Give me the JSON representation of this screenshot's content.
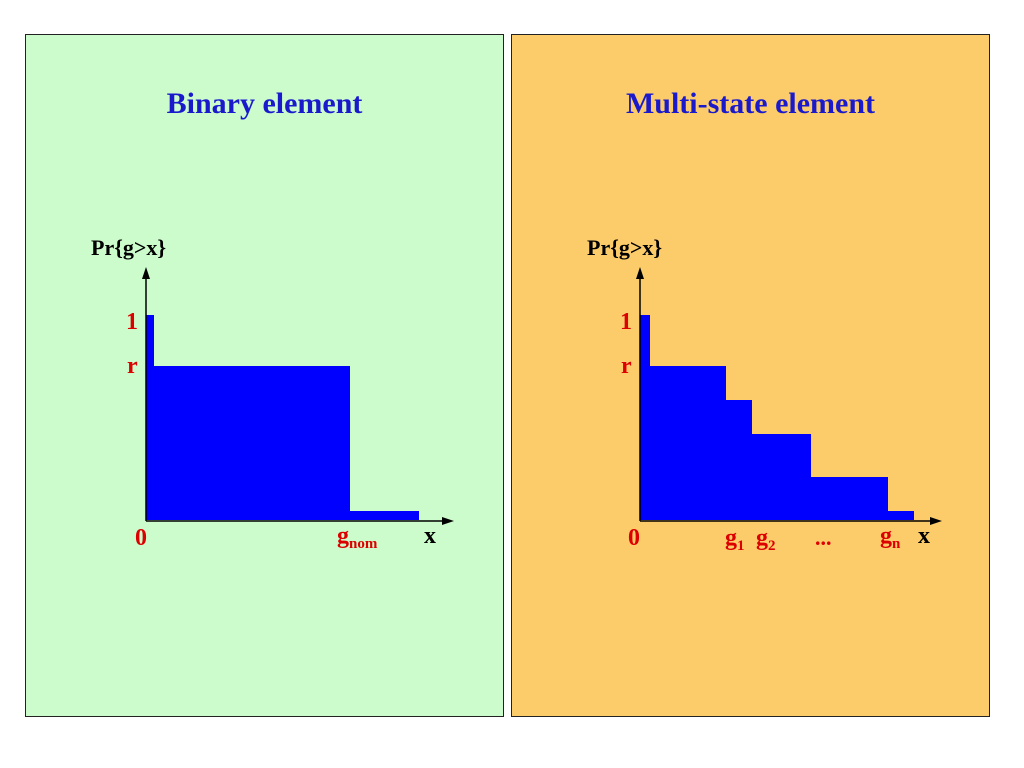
{
  "colors": {
    "left_panel_bg": "#ccfccc",
    "right_panel_bg": "#fccc6a",
    "title": "#1a1acc",
    "bar_fill": "#0000ff",
    "tick_label": "#dd0000",
    "axis": "#000000"
  },
  "left_panel": {
    "title": "Binary element",
    "ylabel": "Pr{g>x}",
    "xlabel": "x",
    "y_ticks": {
      "one": "1",
      "r": "r"
    },
    "x_ticks": {
      "zero": "0",
      "g_nom": {
        "base": "g",
        "sub": "nom"
      }
    }
  },
  "right_panel": {
    "title": "Multi-state element",
    "ylabel": "Pr{g>x}",
    "xlabel": "x",
    "y_ticks": {
      "one": "1",
      "r": "r"
    },
    "x_ticks": {
      "zero": "0",
      "g1": {
        "base": "g",
        "sub": "1"
      },
      "g2": {
        "base": "g",
        "sub": "2"
      },
      "dots": "...",
      "gn": {
        "base": "g",
        "sub": "n"
      }
    }
  }
}
